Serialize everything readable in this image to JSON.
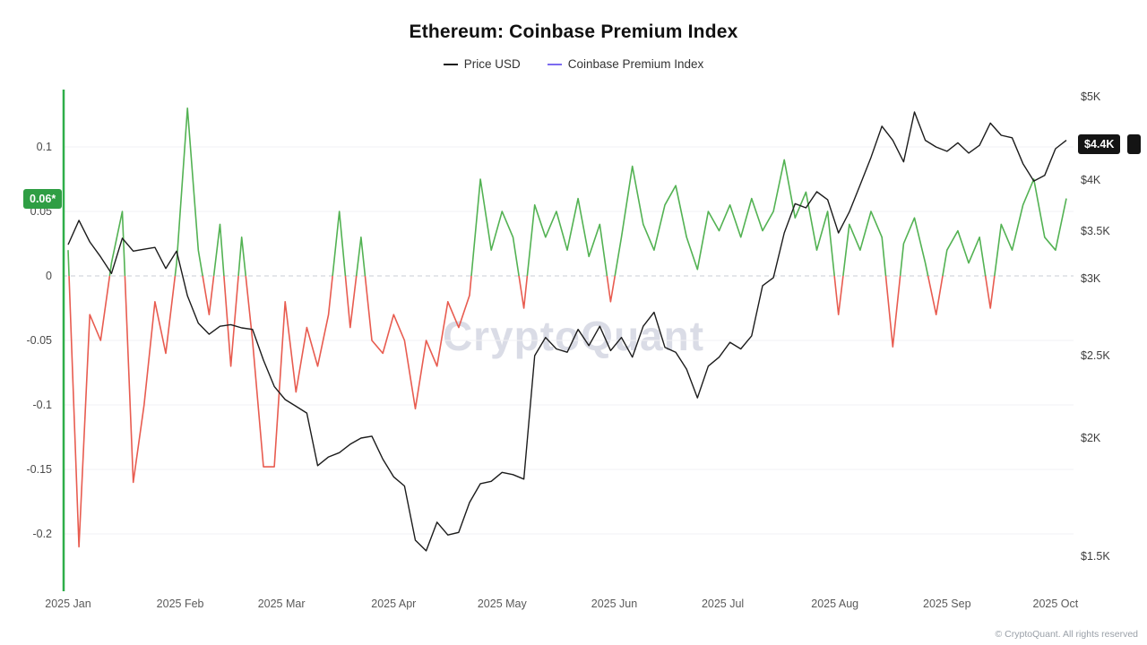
{
  "title": "Ethereum: Coinbase Premium Index",
  "watermark": "CryptoQuant",
  "footer": "© CryptoQuant. All rights reserved",
  "legend": [
    {
      "label": "Price USD",
      "color": "#1c1c1c"
    },
    {
      "label": "Coinbase Premium Index",
      "color": "#7b6af0"
    }
  ],
  "badges": {
    "premium": {
      "text": "0.06*",
      "value": 0.06,
      "bg": "#2f9e44",
      "fg": "#ffffff"
    },
    "price": {
      "text": "$4.4K",
      "value": 4400,
      "bg": "#141414",
      "fg": "#ffffff"
    }
  },
  "axes": {
    "left": {
      "ticks": [
        0.1,
        0.05,
        0,
        -0.05,
        -0.1,
        -0.15,
        -0.2
      ],
      "labels": [
        "0.1",
        "0.05",
        "0",
        "-0.05",
        "-0.1",
        "-0.15",
        "-0.2"
      ],
      "axis_color": "#2fae49"
    },
    "right": {
      "ticks": [
        5000,
        4000,
        3500,
        3000,
        2500,
        2000,
        1500
      ],
      "labels": [
        "$5K",
        "$4K",
        "$3.5K",
        "$3K",
        "$2.5K",
        "$2K",
        "$1.5K"
      ],
      "scale": "log"
    },
    "x": {
      "ticks": [
        "2025-01-01",
        "2025-02-01",
        "2025-03-01",
        "2025-04-01",
        "2025-05-01",
        "2025-06-01",
        "2025-07-01",
        "2025-08-01",
        "2025-09-01",
        "2025-10-01"
      ],
      "labels": [
        "2025 Jan",
        "2025 Feb",
        "2025 Mar",
        "2025 Apr",
        "2025 May",
        "2025 Jun",
        "2025 Jul",
        "2025 Aug",
        "2025 Sep",
        "2025 Oct"
      ]
    }
  },
  "chart_data": {
    "type": "line",
    "title": "Ethereum: Coinbase Premium Index",
    "legend_position": "top",
    "grid": "horizontal-light",
    "x": [
      "2025-01-01",
      "2025-01-04",
      "2025-01-07",
      "2025-01-10",
      "2025-01-13",
      "2025-01-16",
      "2025-01-19",
      "2025-01-22",
      "2025-01-25",
      "2025-01-28",
      "2025-01-31",
      "2025-02-03",
      "2025-02-06",
      "2025-02-09",
      "2025-02-12",
      "2025-02-15",
      "2025-02-18",
      "2025-02-21",
      "2025-02-24",
      "2025-02-27",
      "2025-03-02",
      "2025-03-05",
      "2025-03-08",
      "2025-03-11",
      "2025-03-14",
      "2025-03-17",
      "2025-03-20",
      "2025-03-23",
      "2025-03-26",
      "2025-03-29",
      "2025-04-01",
      "2025-04-04",
      "2025-04-07",
      "2025-04-10",
      "2025-04-13",
      "2025-04-16",
      "2025-04-19",
      "2025-04-22",
      "2025-04-25",
      "2025-04-28",
      "2025-05-01",
      "2025-05-04",
      "2025-05-07",
      "2025-05-10",
      "2025-05-13",
      "2025-05-16",
      "2025-05-19",
      "2025-05-22",
      "2025-05-25",
      "2025-05-28",
      "2025-05-31",
      "2025-06-03",
      "2025-06-06",
      "2025-06-09",
      "2025-06-12",
      "2025-06-15",
      "2025-06-18",
      "2025-06-21",
      "2025-06-24",
      "2025-06-27",
      "2025-06-30",
      "2025-07-03",
      "2025-07-06",
      "2025-07-09",
      "2025-07-12",
      "2025-07-15",
      "2025-07-18",
      "2025-07-21",
      "2025-07-24",
      "2025-07-27",
      "2025-07-30",
      "2025-08-02",
      "2025-08-05",
      "2025-08-08",
      "2025-08-11",
      "2025-08-14",
      "2025-08-17",
      "2025-08-20",
      "2025-08-23",
      "2025-08-26",
      "2025-08-29",
      "2025-09-01",
      "2025-09-04",
      "2025-09-07",
      "2025-09-10",
      "2025-09-13",
      "2025-09-16",
      "2025-09-19",
      "2025-09-22",
      "2025-09-25",
      "2025-09-28",
      "2025-10-01",
      "2025-10-04"
    ],
    "series": [
      {
        "name": "Price USD",
        "axis": "right",
        "color": "#1c1c1c",
        "values": [
          3350,
          3600,
          3380,
          3220,
          3050,
          3420,
          3280,
          3300,
          3320,
          3100,
          3280,
          2880,
          2700,
          2630,
          2680,
          2690,
          2670,
          2660,
          2470,
          2300,
          2220,
          2180,
          2140,
          1870,
          1910,
          1930,
          1970,
          2000,
          2010,
          1900,
          1820,
          1780,
          1560,
          1520,
          1630,
          1580,
          1590,
          1710,
          1790,
          1800,
          1840,
          1830,
          1810,
          2500,
          2610,
          2540,
          2520,
          2660,
          2560,
          2680,
          2530,
          2610,
          2490,
          2680,
          2770,
          2550,
          2520,
          2410,
          2230,
          2430,
          2490,
          2580,
          2540,
          2620,
          2950,
          3010,
          3480,
          3760,
          3720,
          3880,
          3800,
          3480,
          3680,
          3950,
          4250,
          4620,
          4450,
          4200,
          4800,
          4450,
          4370,
          4320,
          4420,
          4300,
          4390,
          4660,
          4510,
          4480,
          4180,
          3990,
          4050,
          4350,
          4450
        ]
      },
      {
        "name": "Coinbase Premium Index",
        "axis": "left",
        "color_positive": "#53b253",
        "color_negative": "#e85c50",
        "values": [
          0.02,
          -0.21,
          -0.03,
          -0.05,
          0.01,
          0.05,
          -0.16,
          -0.1,
          -0.02,
          -0.06,
          0.01,
          0.13,
          0.02,
          -0.03,
          0.04,
          -0.07,
          0.03,
          -0.05,
          -0.148,
          -0.148,
          -0.02,
          -0.09,
          -0.04,
          -0.07,
          -0.03,
          0.05,
          -0.04,
          0.03,
          -0.05,
          -0.06,
          -0.03,
          -0.05,
          -0.103,
          -0.05,
          -0.07,
          -0.02,
          -0.04,
          -0.015,
          0.075,
          0.02,
          0.05,
          0.03,
          -0.025,
          0.055,
          0.03,
          0.05,
          0.02,
          0.06,
          0.015,
          0.04,
          -0.02,
          0.03,
          0.085,
          0.04,
          0.02,
          0.055,
          0.07,
          0.03,
          0.005,
          0.05,
          0.035,
          0.055,
          0.03,
          0.06,
          0.035,
          0.05,
          0.09,
          0.045,
          0.065,
          0.02,
          0.05,
          -0.03,
          0.04,
          0.02,
          0.05,
          0.03,
          -0.055,
          0.025,
          0.045,
          0.01,
          -0.03,
          0.02,
          0.035,
          0.01,
          0.03,
          -0.025,
          0.04,
          0.02,
          0.055,
          0.075,
          0.03,
          0.02,
          0.06
        ]
      }
    ],
    "zero_line": {
      "axis": "left",
      "value": 0,
      "style": "dashed",
      "color": "#c9ced6"
    }
  }
}
